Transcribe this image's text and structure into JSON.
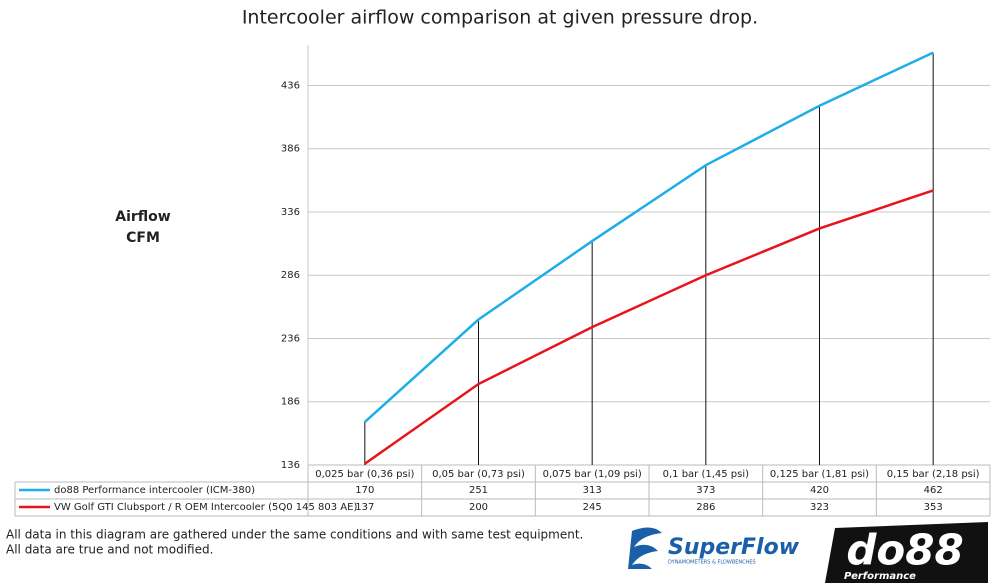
{
  "chart_data": {
    "type": "line",
    "title": "Intercooler airflow comparison at given pressure drop.",
    "y_label_lines": [
      "Airflow",
      "CFM"
    ],
    "categories": [
      "0,025 bar (0,36 psi)",
      "0,05 bar (0,73 psi)",
      "0,075 bar (1,09 psi)",
      "0,1 bar (1,45 psi)",
      "0,125 bar (1,81 psi)",
      "0,15 bar (2,18 psi)"
    ],
    "series": [
      {
        "name": "do88 Performance intercooler (ICM-380)",
        "color": "#1eaee8",
        "values": [
          170,
          251,
          313,
          373,
          420,
          462
        ]
      },
      {
        "name": "VW Golf GTI Clubsport / R OEM Intercooler (5Q0 145 803 AE)",
        "color": "#e8141a",
        "values": [
          137,
          200,
          245,
          286,
          323,
          353
        ]
      }
    ],
    "ylim": [
      136,
      468
    ],
    "yticks": [
      136,
      186,
      236,
      286,
      336,
      386,
      436
    ],
    "grid": true,
    "notes": [
      "All data in this diagram are gathered under the same conditions and with same test equipment.",
      "All data are true and not modified."
    ],
    "logos": {
      "superflow": "SuperFlow",
      "superflow_tagline": "DYNAMOMETERS & FLOWBENCHES",
      "do88": "do88",
      "do88_sub": "Performance"
    }
  }
}
